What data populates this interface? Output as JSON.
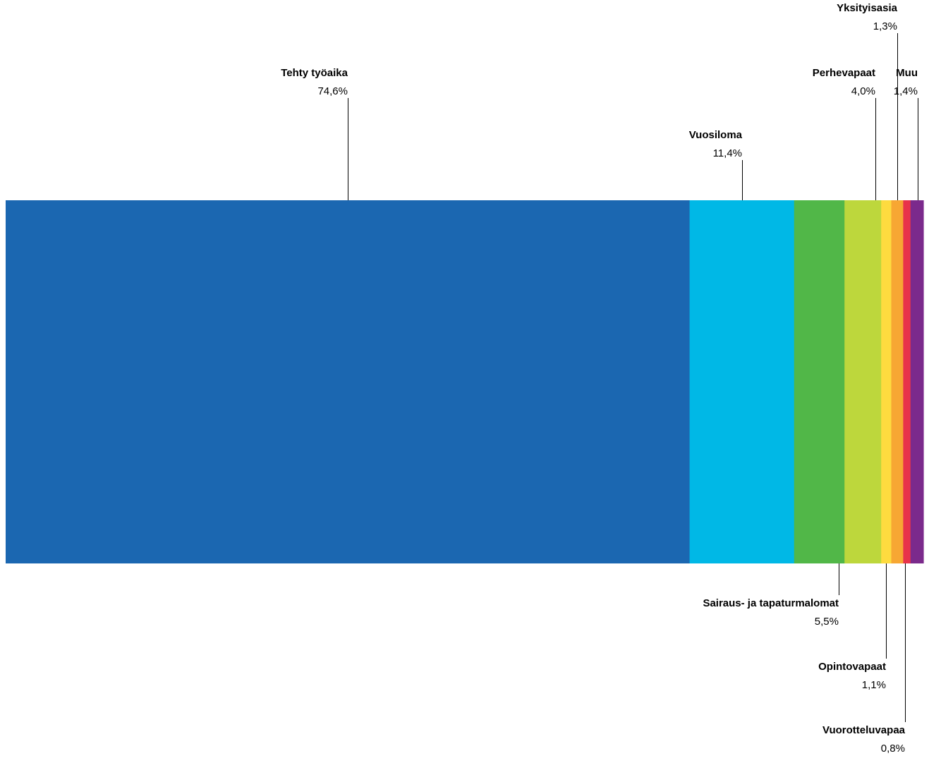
{
  "chart_data": {
    "type": "bar",
    "orientation": "horizontal-stacked-100",
    "series": [
      {
        "name": "Tehty työaika",
        "value": 74.6,
        "value_label": "74,6%",
        "color": "#1b67b1",
        "label_side": "above"
      },
      {
        "name": "Vuosiloma",
        "value": 11.4,
        "value_label": "11,4%",
        "color": "#00b8e6",
        "label_side": "above"
      },
      {
        "name": "Sairaus- ja tapaturmalomat",
        "value": 5.5,
        "value_label": "5,5%",
        "color": "#51b748",
        "label_side": "below"
      },
      {
        "name": "Perhevapaat",
        "value": 4.0,
        "value_label": "4,0%",
        "color": "#bdd73c",
        "label_side": "above"
      },
      {
        "name": "Opintovapaat",
        "value": 1.1,
        "value_label": "1,1%",
        "color": "#fedb3f",
        "label_side": "below"
      },
      {
        "name": "Yksityisasia",
        "value": 1.3,
        "value_label": "1,3%",
        "color": "#f7a733",
        "label_side": "above"
      },
      {
        "name": "Vuorotteluvapaa",
        "value": 0.8,
        "value_label": "0,8%",
        "color": "#e8334a",
        "label_side": "below"
      },
      {
        "name": "Muu",
        "value": 1.4,
        "value_label": "1,4%",
        "color": "#7b2a8c",
        "label_side": "above"
      }
    ],
    "title": "",
    "xlabel": "",
    "ylabel": "",
    "grid": false,
    "legend": "none"
  }
}
